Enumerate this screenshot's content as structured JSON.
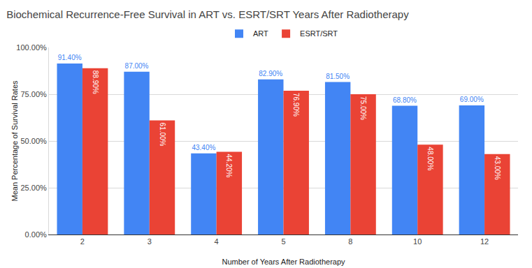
{
  "chart_data": {
    "type": "bar",
    "title": "Biochemical Recurrence-Free Survival in ART vs. ESRT/SRT Years After Radiotherapy",
    "x_label": "Number of Years After Radiotherapy",
    "y_label": "Mean Percentage of Survival Rates",
    "categories": [
      "2",
      "3",
      "4",
      "5",
      "8",
      "10",
      "12"
    ],
    "series": [
      {
        "name": "ART",
        "color": "#4285f4",
        "values": [
          91.4,
          87,
          43.4,
          82.9,
          81.5,
          68.8,
          69
        ],
        "value_labels": [
          "91.40%",
          "87.00%",
          "43.40%",
          "82.90%",
          "81.50%",
          "68.80%",
          "69.00%"
        ]
      },
      {
        "name": "ESRT/SRT",
        "color": "#ea4335",
        "values": [
          88.9,
          61,
          44.2,
          76.9,
          75,
          48,
          43
        ],
        "value_labels": [
          "88.90%",
          "61.00%",
          "44.20%",
          "76.90%",
          "75.00%",
          "48.00%",
          "43.00%"
        ]
      }
    ],
    "ylim": [
      0,
      100
    ],
    "yticks": [
      {
        "value": 0,
        "label": "0.00%"
      },
      {
        "value": 25,
        "label": "25.00%"
      },
      {
        "value": 50,
        "label": "50.00%"
      },
      {
        "value": 75,
        "label": "75.00%"
      },
      {
        "value": 100,
        "label": "100.00%"
      }
    ],
    "grid": true,
    "legend": "top",
    "data_labels": true
  }
}
